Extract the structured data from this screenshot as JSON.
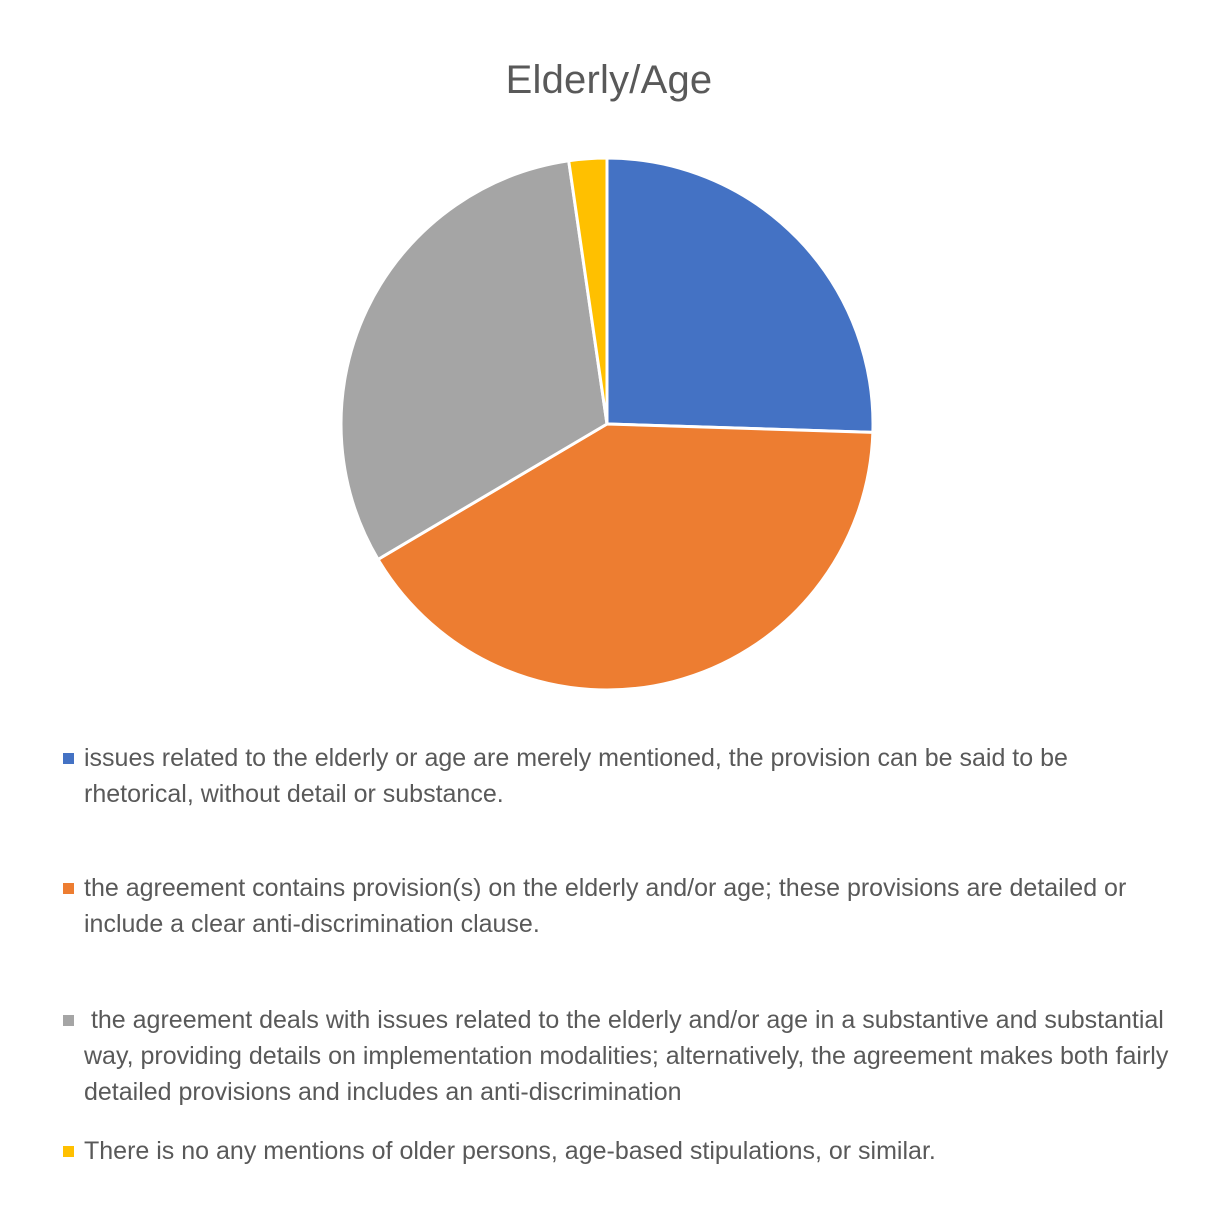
{
  "chart_data": {
    "type": "pie",
    "title": "Elderly/Age",
    "start_angle_deg": 0,
    "direction": "clockwise",
    "legend_position": "bottom",
    "slices": [
      {
        "label": "issues related to the elderly or age are merely mentioned, the provision can be said to be rhetorical, without detail or substance.",
        "value": 25.5,
        "color": "#4472C4"
      },
      {
        "label": "the agreement contains provision(s) on the elderly and/or age; these provisions are detailed or include a clear anti-discrimination clause.",
        "value": 41.0,
        "color": "#ED7D31"
      },
      {
        "label": " the agreement deals with issues related to the elderly and/or age in a substantive and substantial way, providing details on implementation modalities; alternatively, the agreement makes both fairly detailed provisions and includes an anti-discrimination",
        "value": 31.2,
        "color": "#A5A5A5"
      },
      {
        "label": "There is no any mentions of older persons, age-based stipulations, or similar.",
        "value": 2.3,
        "color": "#FFC000"
      }
    ]
  }
}
